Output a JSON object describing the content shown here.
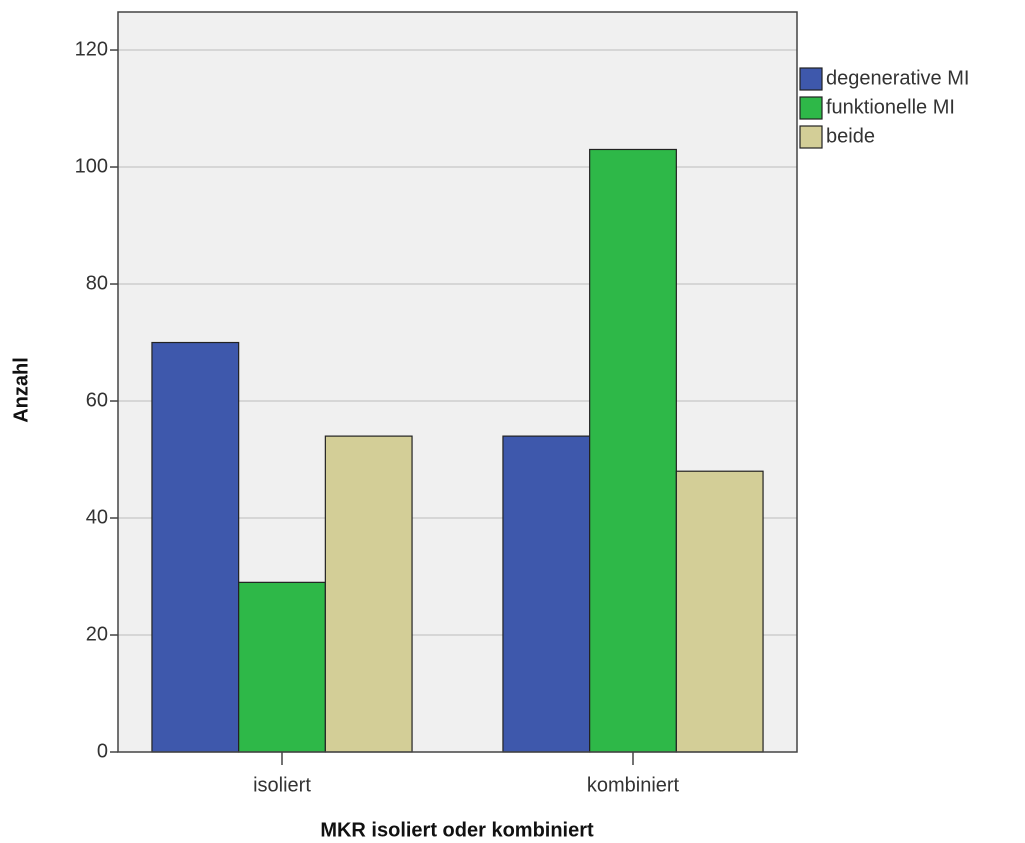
{
  "chart_data": {
    "type": "bar",
    "categories": [
      "isoliert",
      "kombiniert"
    ],
    "series": [
      {
        "name": "degenerative MI",
        "color": "#3e58ac",
        "values": [
          70,
          54
        ]
      },
      {
        "name": "funktionelle MI",
        "color": "#2eb848",
        "values": [
          29,
          103
        ]
      },
      {
        "name": "beide",
        "color": "#d3ce97",
        "values": [
          54,
          48
        ]
      }
    ],
    "ylim": [
      0,
      126.5
    ],
    "yticks": [
      0,
      20,
      40,
      60,
      80,
      100,
      120
    ],
    "x_label": "MKR isoliert oder kombiniert",
    "y_label": "Anzahl",
    "grid": true,
    "legend": "right"
  }
}
